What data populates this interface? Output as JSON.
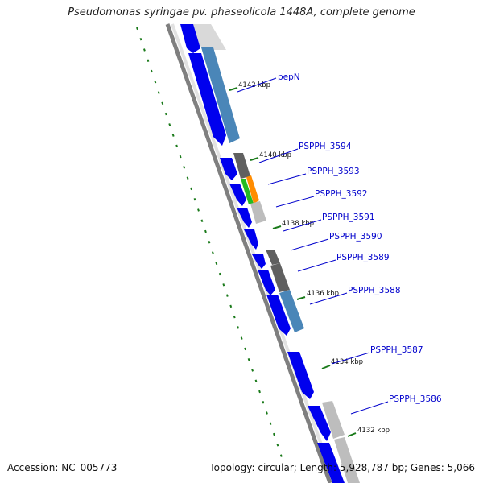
{
  "title": "Pseudomonas syringae pv. phaseolicola 1448A, complete genome",
  "footer": {
    "accession": "Accession: NC_005773",
    "topology": "Topology: circular; Length: 5,928,787 bp; Genes: 5,066"
  },
  "colors": {
    "backbone": "#7f7f7f",
    "cds_forward": "#0000ee",
    "cds_steelblue": "#4a86b8",
    "cds_darkgray": "#606060",
    "cds_lightgray": "#bdbdbd",
    "cds_green": "#22bb22",
    "cds_orange": "#ff8c00",
    "tick_green": "#1a7a1a",
    "label_blue": "#0000cc"
  },
  "kbp_labels": [
    "4142 kbp",
    "4140 kbp",
    "4138 kbp",
    "4136 kbp",
    "4134 kbp",
    "4132 kbp"
  ],
  "genes": [
    "pepN",
    "PSPPH_3594",
    "PSPPH_3593",
    "PSPPH_3592",
    "PSPPH_3591",
    "PSPPH_3590",
    "PSPPH_3589",
    "PSPPH_3588",
    "PSPPH_3587",
    "PSPPH_3586"
  ]
}
